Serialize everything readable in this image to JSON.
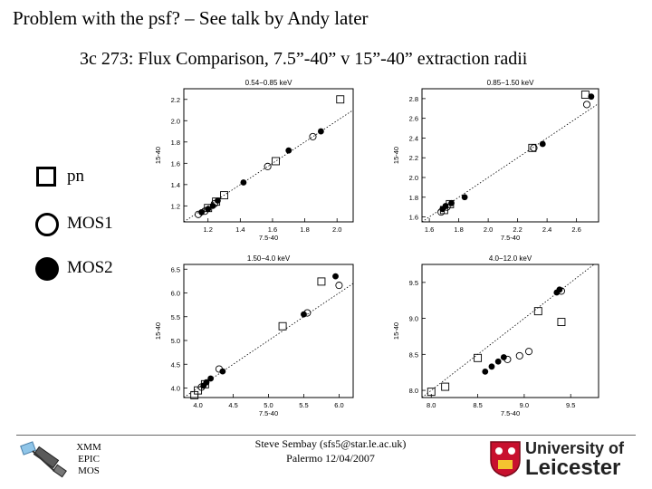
{
  "header": {
    "title": "Problem with the psf? – See talk by Andy later",
    "subtitle": "3c 273: Flux Comparison, 7.5”-40” v 15”-40” extraction radii"
  },
  "legend": [
    {
      "symbol": "square",
      "label": "pn"
    },
    {
      "symbol": "circle",
      "label": "MOS1"
    },
    {
      "symbol": "filled-circle",
      "label": "MOS2"
    }
  ],
  "footer": {
    "logo_text": [
      "XMM",
      "EPIC",
      "MOS"
    ],
    "contact_line1": "Steve Sembay (sfs5@star.le.ac.uk)",
    "contact_line2": "Palermo 12/04/2007",
    "university_line1": "University of",
    "university_line2": "Leicester"
  },
  "chart_data": [
    {
      "type": "scatter",
      "title": "0.54−0.85 keV",
      "xlabel": "7.5-40",
      "ylabel": "15-40",
      "xlim": [
        1.05,
        2.1
      ],
      "ylim": [
        1.05,
        2.3
      ],
      "xticks": [
        "1.2",
        "1.4",
        "1.6",
        "1.8",
        "2.0"
      ],
      "yticks": [
        "1.0",
        "1.2",
        "1.4",
        "1.6",
        "1.8",
        "2.0",
        "2.2"
      ],
      "ytick_values": [
        1.0,
        1.2,
        1.4,
        1.6,
        1.8,
        2.0,
        2.2
      ],
      "xtick_values": [
        1.2,
        1.4,
        1.6,
        1.8,
        2.0
      ],
      "series": [
        {
          "name": "pn",
          "points": [
            [
              1.2,
              1.18
            ],
            [
              1.25,
              1.24
            ],
            [
              1.3,
              1.3
            ],
            [
              1.62,
              1.62
            ],
            [
              2.02,
              2.2
            ]
          ]
        },
        {
          "name": "MOS1",
          "points": [
            [
              1.14,
              1.12
            ],
            [
              1.18,
              1.15
            ],
            [
              1.24,
              1.22
            ],
            [
              1.57,
              1.57
            ],
            [
              1.85,
              1.85
            ]
          ]
        },
        {
          "name": "MOS2",
          "points": [
            [
              1.16,
              1.14
            ],
            [
              1.2,
              1.17
            ],
            [
              1.23,
              1.2
            ],
            [
              1.26,
              1.25
            ],
            [
              1.42,
              1.42
            ],
            [
              1.7,
              1.72
            ],
            [
              1.9,
              1.9
            ]
          ]
        }
      ]
    },
    {
      "type": "scatter",
      "title": "0.85−1.50 keV",
      "xlabel": "7.5-40",
      "ylabel": "15-40",
      "xlim": [
        1.55,
        2.75
      ],
      "ylim": [
        1.55,
        2.9
      ],
      "xticks": [
        "1.6",
        "1.8",
        "2.0",
        "2.2",
        "2.4",
        "2.6"
      ],
      "yticks": [
        "1.6",
        "1.8",
        "2.0",
        "2.2",
        "2.4",
        "2.6",
        "2.8"
      ],
      "ytick_values": [
        1.6,
        1.8,
        2.0,
        2.2,
        2.4,
        2.6,
        2.8
      ],
      "xtick_values": [
        1.6,
        1.8,
        2.0,
        2.2,
        2.4,
        2.6
      ],
      "series": [
        {
          "name": "pn",
          "points": [
            [
              1.7,
              1.67
            ],
            [
              1.74,
              1.73
            ],
            [
              2.3,
              2.3
            ],
            [
              2.66,
              2.84
            ]
          ]
        },
        {
          "name": "MOS1",
          "points": [
            [
              1.68,
              1.65
            ],
            [
              1.72,
              1.7
            ],
            [
              2.31,
              2.3
            ],
            [
              2.67,
              2.74
            ]
          ]
        },
        {
          "name": "MOS2",
          "points": [
            [
              1.69,
              1.68
            ],
            [
              1.71,
              1.71
            ],
            [
              1.75,
              1.74
            ],
            [
              1.84,
              1.8
            ],
            [
              2.37,
              2.34
            ],
            [
              2.7,
              2.82
            ]
          ]
        }
      ]
    },
    {
      "type": "scatter",
      "title": "1.50−4.0 keV",
      "xlabel": "7.5-40",
      "ylabel": "15-40",
      "xlim": [
        3.8,
        6.2
      ],
      "ylim": [
        3.8,
        6.6
      ],
      "xticks": [
        "4.0",
        "4.5",
        "5.0",
        "5.5",
        "6.0"
      ],
      "yticks": [
        "4.0",
        "4.5",
        "5.0",
        "5.5",
        "6.0",
        "6.5"
      ],
      "ytick_values": [
        4.0,
        4.5,
        5.0,
        5.5,
        6.0,
        6.5
      ],
      "xtick_values": [
        4.0,
        4.5,
        5.0,
        5.5,
        6.0
      ],
      "series": [
        {
          "name": "pn",
          "points": [
            [
              3.95,
              3.85
            ],
            [
              4.0,
              3.95
            ],
            [
              4.1,
              4.08
            ],
            [
              5.2,
              5.3
            ],
            [
              5.75,
              6.24
            ]
          ]
        },
        {
          "name": "MOS1",
          "points": [
            [
              4.05,
              4.02
            ],
            [
              4.3,
              4.4
            ],
            [
              5.55,
              5.58
            ],
            [
              6.0,
              6.16
            ]
          ]
        },
        {
          "name": "MOS2",
          "points": [
            [
              4.08,
              4.05
            ],
            [
              4.12,
              4.12
            ],
            [
              4.18,
              4.2
            ],
            [
              4.35,
              4.35
            ],
            [
              5.5,
              5.55
            ],
            [
              5.95,
              6.35
            ]
          ]
        }
      ]
    },
    {
      "type": "scatter",
      "title": "4.0−12.0 keV",
      "xlabel": "7.5-40",
      "ylabel": "15-40",
      "xlim": [
        7.9,
        9.8
      ],
      "ylim": [
        7.9,
        9.75
      ],
      "xticks": [
        "8.0",
        "8.5",
        "9.0",
        "9.5"
      ],
      "yticks": [
        "8.0",
        "8.5",
        "9.0",
        "9.5"
      ],
      "ytick_values": [
        8.0,
        8.5,
        9.0,
        9.5
      ],
      "xtick_values": [
        8.0,
        8.5,
        9.0,
        9.5
      ],
      "series": [
        {
          "name": "pn",
          "points": [
            [
              8.0,
              7.98
            ],
            [
              8.15,
              8.05
            ],
            [
              8.5,
              8.45
            ],
            [
              9.4,
              8.95
            ],
            [
              9.15,
              9.1
            ]
          ]
        },
        {
          "name": "MOS1",
          "points": [
            [
              8.82,
              8.43
            ],
            [
              8.95,
              8.48
            ],
            [
              9.05,
              8.54
            ],
            [
              9.4,
              9.38
            ]
          ]
        },
        {
          "name": "MOS2",
          "points": [
            [
              8.58,
              8.26
            ],
            [
              8.65,
              8.33
            ],
            [
              8.72,
              8.4
            ],
            [
              8.78,
              8.46
            ],
            [
              9.35,
              9.36
            ],
            [
              9.38,
              9.4
            ]
          ]
        }
      ]
    }
  ]
}
